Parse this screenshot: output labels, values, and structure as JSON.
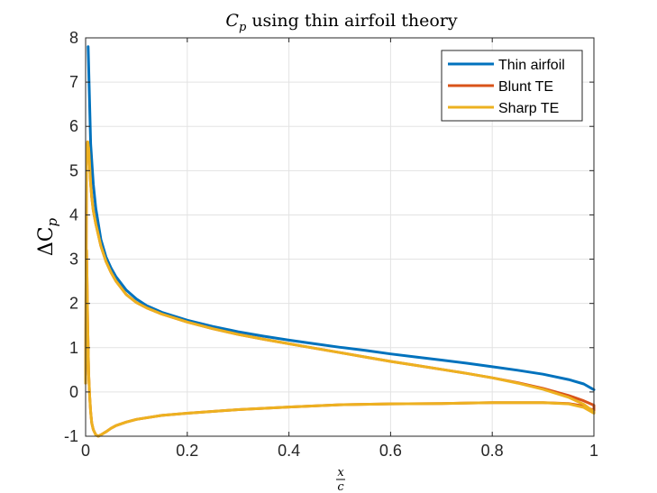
{
  "chart_data": {
    "type": "line",
    "title": "Cp using thin airfoil theory",
    "title_main": "C",
    "title_sub": "p",
    "title_rest": " using thin airfoil theory",
    "ylabel": "ΔCp",
    "ylabel_main": "ΔC",
    "ylabel_sub": "p",
    "xlabel": "x/c",
    "xlabel_num": "x",
    "xlabel_den": "c",
    "xlim": [
      0,
      1
    ],
    "ylim": [
      -1,
      8
    ],
    "xticks": [
      "0",
      "0.2",
      "0.4",
      "0.6",
      "0.8",
      "1"
    ],
    "yticks": [
      "-1",
      "0",
      "1",
      "2",
      "3",
      "4",
      "5",
      "6",
      "7",
      "8"
    ],
    "grid": true,
    "legend_position": "top-right",
    "series": [
      {
        "name": "Thin airfoil",
        "color": "#0072BD",
        "x": [
          0.005,
          0.01,
          0.015,
          0.02,
          0.03,
          0.04,
          0.05,
          0.06,
          0.08,
          0.1,
          0.12,
          0.15,
          0.2,
          0.25,
          0.3,
          0.35,
          0.4,
          0.45,
          0.5,
          0.55,
          0.6,
          0.65,
          0.7,
          0.75,
          0.8,
          0.85,
          0.9,
          0.95,
          0.98,
          1.0
        ],
        "y": [
          7.8,
          5.6,
          4.7,
          4.15,
          3.45,
          3.05,
          2.8,
          2.6,
          2.3,
          2.1,
          1.95,
          1.8,
          1.62,
          1.48,
          1.36,
          1.26,
          1.17,
          1.09,
          1.01,
          0.94,
          0.86,
          0.79,
          0.72,
          0.65,
          0.57,
          0.49,
          0.4,
          0.28,
          0.18,
          0.05
        ]
      },
      {
        "name": "Blunt TE",
        "color": "#D95319",
        "x": [
          0.0,
          0.002,
          0.004,
          0.006,
          0.008,
          0.01,
          0.012,
          0.015,
          0.02,
          0.03,
          0.04,
          0.05,
          0.06,
          0.08,
          0.1,
          0.12,
          0.15,
          0.2,
          0.25,
          0.3,
          0.35,
          0.4,
          0.45,
          0.5,
          0.55,
          0.6,
          0.65,
          0.7,
          0.75,
          0.8,
          0.85,
          0.9,
          0.95,
          0.98,
          1.0,
          1.0,
          0.98,
          0.95,
          0.9,
          0.85,
          0.8,
          0.7,
          0.6,
          0.5,
          0.4,
          0.3,
          0.2,
          0.15,
          0.1,
          0.08,
          0.06,
          0.05,
          0.04,
          0.03,
          0.025,
          0.02,
          0.015,
          0.012,
          0.01,
          0.008,
          0.006,
          0.004,
          0.002,
          0.0
        ],
        "y": [
          0.2,
          5.3,
          5.65,
          5.5,
          5.1,
          4.7,
          4.4,
          4.1,
          3.8,
          3.3,
          2.95,
          2.7,
          2.5,
          2.2,
          2.02,
          1.9,
          1.76,
          1.58,
          1.43,
          1.3,
          1.19,
          1.09,
          0.99,
          0.89,
          0.79,
          0.69,
          0.6,
          0.51,
          0.42,
          0.32,
          0.21,
          0.08,
          -0.08,
          -0.2,
          -0.3,
          -0.42,
          -0.32,
          -0.26,
          -0.24,
          -0.24,
          -0.24,
          -0.26,
          -0.27,
          -0.29,
          -0.34,
          -0.4,
          -0.48,
          -0.53,
          -0.62,
          -0.68,
          -0.76,
          -0.82,
          -0.9,
          -0.97,
          -1.0,
          -0.97,
          -0.85,
          -0.7,
          -0.45,
          -0.1,
          0.4,
          1.5,
          3.2,
          0.2
        ]
      },
      {
        "name": "Sharp TE",
        "color": "#EDB120",
        "x": [
          0.0,
          0.002,
          0.004,
          0.006,
          0.008,
          0.01,
          0.012,
          0.015,
          0.02,
          0.03,
          0.04,
          0.05,
          0.06,
          0.08,
          0.1,
          0.12,
          0.15,
          0.2,
          0.25,
          0.3,
          0.35,
          0.4,
          0.45,
          0.5,
          0.55,
          0.6,
          0.65,
          0.7,
          0.75,
          0.8,
          0.85,
          0.9,
          0.95,
          0.98,
          1.0,
          1.0,
          0.98,
          0.95,
          0.9,
          0.85,
          0.8,
          0.7,
          0.6,
          0.5,
          0.4,
          0.3,
          0.2,
          0.15,
          0.1,
          0.08,
          0.06,
          0.05,
          0.04,
          0.03,
          0.025,
          0.02,
          0.015,
          0.012,
          0.01,
          0.008,
          0.006,
          0.004,
          0.002,
          0.0
        ],
        "y": [
          0.2,
          5.3,
          5.65,
          5.5,
          5.1,
          4.7,
          4.4,
          4.1,
          3.8,
          3.3,
          2.95,
          2.7,
          2.5,
          2.2,
          2.02,
          1.9,
          1.76,
          1.58,
          1.43,
          1.3,
          1.19,
          1.09,
          0.99,
          0.89,
          0.79,
          0.69,
          0.6,
          0.51,
          0.42,
          0.32,
          0.2,
          0.06,
          -0.12,
          -0.28,
          -0.45,
          -0.48,
          -0.35,
          -0.27,
          -0.24,
          -0.24,
          -0.24,
          -0.26,
          -0.27,
          -0.29,
          -0.34,
          -0.4,
          -0.48,
          -0.53,
          -0.62,
          -0.68,
          -0.76,
          -0.82,
          -0.9,
          -0.97,
          -1.0,
          -0.97,
          -0.85,
          -0.7,
          -0.45,
          -0.1,
          0.4,
          1.5,
          3.2,
          0.2
        ]
      }
    ]
  }
}
